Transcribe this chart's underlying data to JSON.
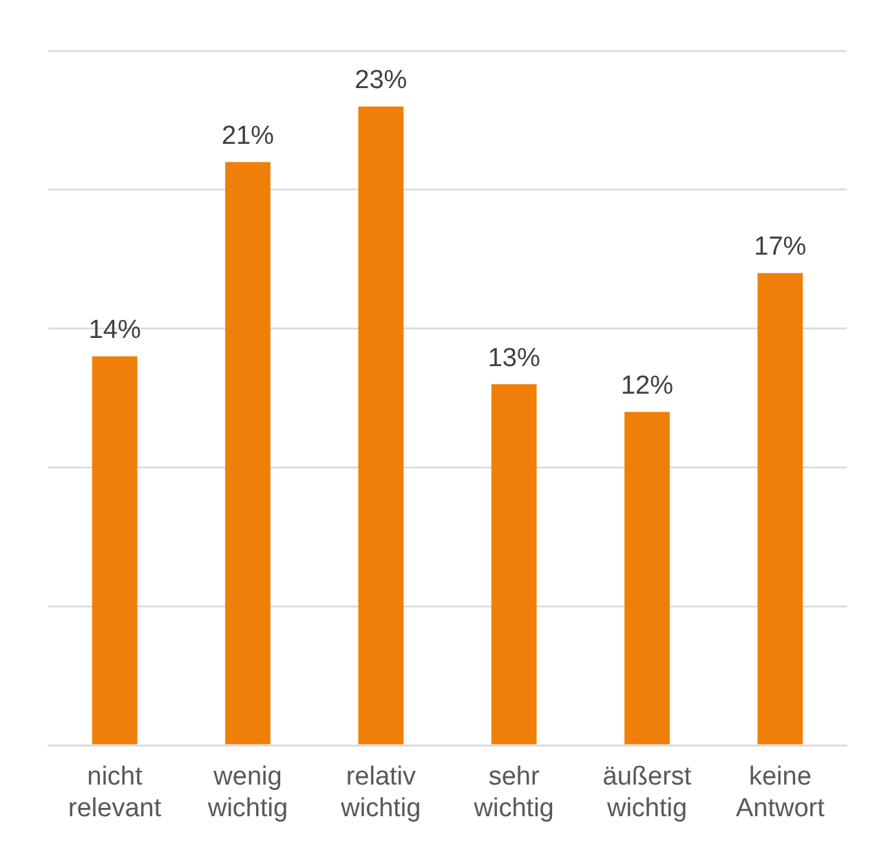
{
  "chart_data": {
    "type": "bar",
    "categories": [
      "nicht relevant",
      "wenig wichtig",
      "relativ wichtig",
      "sehr wichtig",
      "äußerst wichtig",
      "keine Antwort"
    ],
    "values": [
      14,
      21,
      23,
      13,
      12,
      17
    ],
    "color": "#f07f09",
    "value_labels": [
      "14%",
      "21%",
      "23%",
      "13%",
      "12%",
      "17%"
    ],
    "ylim": [
      0,
      25
    ],
    "yticks": [
      {
        "value": 0,
        "label": null
      },
      {
        "value": 5,
        "label": null
      },
      {
        "value": 10,
        "label": null
      },
      {
        "value": 15,
        "label": null
      },
      {
        "value": 20,
        "label": null
      },
      {
        "value": 25,
        "label": null
      }
    ],
    "grid": "y",
    "tick_labels": "x"
  }
}
